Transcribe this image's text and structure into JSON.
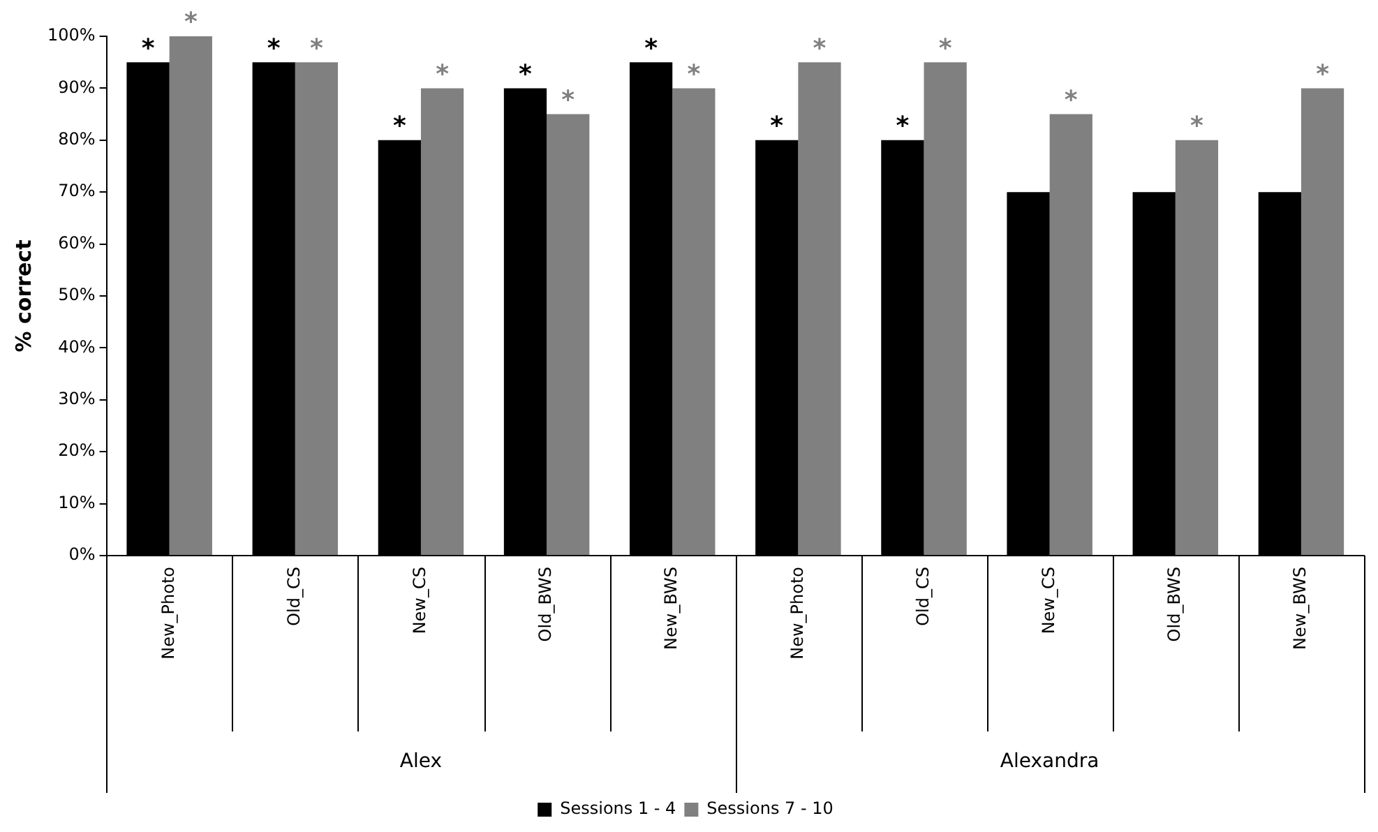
{
  "chart_data": {
    "type": "bar",
    "ylabel": "% correct",
    "categories": [
      "New_Photo",
      "Old_CS",
      "New_CS",
      "Old_BWS",
      "New_BWS",
      "New_Photo",
      "Old_CS",
      "New_CS",
      "Old_BWS",
      "New_BWS"
    ],
    "series": [
      {
        "name": "Sessions 1 - 4",
        "color": "#000000",
        "values": [
          95,
          95,
          80,
          90,
          95,
          80,
          80,
          70,
          70,
          70
        ],
        "value_labels": [
          "*",
          "*",
          "*",
          "*",
          "*",
          "*",
          "*",
          null,
          null,
          null
        ]
      },
      {
        "name": "Sessions 7 - 10",
        "color": "#808080",
        "values": [
          100,
          95,
          90,
          85,
          90,
          95,
          95,
          85,
          80,
          90
        ],
        "value_labels": [
          "*",
          "*",
          "*",
          "*",
          "*",
          "*",
          "*",
          "*",
          "*",
          "*"
        ]
      }
    ],
    "annotations": [
      "Alex",
      "Alexandra"
    ],
    "ylim": [
      0,
      100
    ],
    "yticks": [
      {
        "value": 0,
        "label": "0%"
      },
      {
        "value": 10,
        "label": "10%"
      },
      {
        "value": 20,
        "label": "20%"
      },
      {
        "value": 30,
        "label": "30%"
      },
      {
        "value": 40,
        "label": "40%"
      },
      {
        "value": 50,
        "label": "50%"
      },
      {
        "value": 60,
        "label": "60%"
      },
      {
        "value": 70,
        "label": "70%"
      },
      {
        "value": 80,
        "label": "80%"
      },
      {
        "value": 90,
        "label": "90%"
      },
      {
        "value": 100,
        "label": "100%"
      }
    ],
    "grid": false,
    "legend": "bottom"
  }
}
